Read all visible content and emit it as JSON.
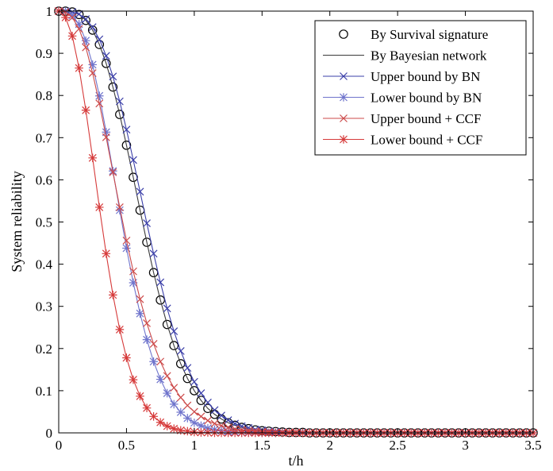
{
  "chart_data": {
    "type": "line",
    "title": "",
    "xlabel": "t/h",
    "ylabel": "System reliability",
    "xlim": [
      0,
      3.5
    ],
    "ylim": [
      0,
      1
    ],
    "xticks": [
      0,
      0.5,
      1,
      1.5,
      2,
      2.5,
      3,
      3.5
    ],
    "xtick_labels": [
      "0",
      "0.5",
      "1",
      "1.5",
      "2",
      "2.5",
      "3",
      "3.5"
    ],
    "yticks": [
      0,
      0.1,
      0.2,
      0.3,
      0.4,
      0.5,
      0.6,
      0.7,
      0.8,
      0.9,
      1
    ],
    "ytick_labels": [
      "0",
      "0.1",
      "0.2",
      "0.3",
      "0.4",
      "0.5",
      "0.6",
      "0.7",
      "0.8",
      "0.9",
      "1"
    ],
    "grid": false,
    "legend_position": "top-right",
    "x": [
      0,
      0.05,
      0.1,
      0.15,
      0.2,
      0.25,
      0.3,
      0.35,
      0.4,
      0.45,
      0.5,
      0.55,
      0.6,
      0.65,
      0.7,
      0.75,
      0.8,
      0.85,
      0.9,
      0.95,
      1.0,
      1.05,
      1.1,
      1.15,
      1.2,
      1.25,
      1.3,
      1.35,
      1.4,
      1.45,
      1.5,
      1.55,
      1.6,
      1.65,
      1.7,
      1.75,
      1.8,
      1.85,
      1.9,
      1.95,
      2.0,
      2.05,
      2.1,
      2.15,
      2.2,
      2.25,
      2.3,
      2.35,
      2.4,
      2.45,
      2.5,
      2.55,
      2.6,
      2.65,
      2.7,
      2.75,
      2.8,
      2.85,
      2.9,
      2.95,
      3.0,
      3.05,
      3.1,
      3.15,
      3.2,
      3.25,
      3.3,
      3.35,
      3.4,
      3.45,
      3.5
    ],
    "series": [
      {
        "name": "By Survival signature",
        "color": "#000000",
        "line": false,
        "marker": "circle",
        "values": [
          1.0,
          1.0,
          0.998,
          0.992,
          0.978,
          0.955,
          0.921,
          0.876,
          0.82,
          0.755,
          0.682,
          0.606,
          0.528,
          0.452,
          0.38,
          0.315,
          0.257,
          0.207,
          0.164,
          0.129,
          0.1,
          0.077,
          0.058,
          0.044,
          0.033,
          0.024,
          0.018,
          0.013,
          0.01,
          0.007,
          0.005,
          0.004,
          0.003,
          0.002,
          0.001,
          0.001,
          0.001,
          0.0,
          0.0,
          0.0,
          0.0,
          0.0,
          0.0,
          0.0,
          0.0,
          0.0,
          0.0,
          0.0,
          0.0,
          0.0,
          0.0,
          0.0,
          0.0,
          0.0,
          0.0,
          0.0,
          0.0,
          0.0,
          0.0,
          0.0,
          0.0,
          0.0,
          0.0,
          0.0,
          0.0,
          0.0,
          0.0,
          0.0,
          0.0,
          0.0,
          0.0
        ]
      },
      {
        "name": "By Bayesian network",
        "color": "#3a3a3a",
        "line": true,
        "marker": "none",
        "values": [
          1.0,
          1.0,
          0.998,
          0.992,
          0.978,
          0.955,
          0.921,
          0.876,
          0.82,
          0.755,
          0.682,
          0.606,
          0.528,
          0.452,
          0.38,
          0.315,
          0.257,
          0.207,
          0.164,
          0.129,
          0.1,
          0.077,
          0.058,
          0.044,
          0.033,
          0.024,
          0.018,
          0.013,
          0.01,
          0.007,
          0.005,
          0.004,
          0.003,
          0.002,
          0.001,
          0.001,
          0.001,
          0.0,
          0.0,
          0.0,
          0.0,
          0.0,
          0.0,
          0.0,
          0.0,
          0.0,
          0.0,
          0.0,
          0.0,
          0.0,
          0.0,
          0.0,
          0.0,
          0.0,
          0.0,
          0.0,
          0.0,
          0.0,
          0.0,
          0.0,
          0.0,
          0.0,
          0.0,
          0.0,
          0.0,
          0.0,
          0.0,
          0.0,
          0.0,
          0.0,
          0.0
        ]
      },
      {
        "name": "Upper bound by BN",
        "color": "#3b3fa8",
        "line": true,
        "marker": "x",
        "values": [
          1.0,
          1.0,
          0.998,
          0.993,
          0.981,
          0.962,
          0.933,
          0.894,
          0.845,
          0.786,
          0.719,
          0.647,
          0.572,
          0.497,
          0.425,
          0.357,
          0.295,
          0.241,
          0.194,
          0.154,
          0.121,
          0.094,
          0.072,
          0.054,
          0.041,
          0.03,
          0.022,
          0.016,
          0.012,
          0.008,
          0.006,
          0.004,
          0.003,
          0.002,
          0.001,
          0.001,
          0.001,
          0.0,
          0.0,
          0.0,
          0.0,
          0.0,
          0.0,
          0.0,
          0.0,
          0.0,
          0.0,
          0.0,
          0.0,
          0.0,
          0.0,
          0.0,
          0.0,
          0.0,
          0.0,
          0.0,
          0.0,
          0.0,
          0.0,
          0.0,
          0.0,
          0.0,
          0.0,
          0.0,
          0.0,
          0.0,
          0.0,
          0.0,
          0.0,
          0.0,
          0.0
        ]
      },
      {
        "name": "Lower bound by BN",
        "color": "#6f74cc",
        "line": true,
        "marker": "asterisk",
        "values": [
          1.0,
          0.999,
          0.99,
          0.969,
          0.93,
          0.873,
          0.799,
          0.713,
          0.621,
          0.528,
          0.438,
          0.356,
          0.283,
          0.221,
          0.169,
          0.127,
          0.094,
          0.068,
          0.049,
          0.035,
          0.024,
          0.017,
          0.011,
          0.008,
          0.005,
          0.003,
          0.002,
          0.001,
          0.001,
          0.001,
          0.0,
          0.0,
          0.0,
          0.0,
          0.0,
          0.0,
          0.0,
          0.0,
          0.0,
          0.0,
          0.0,
          0.0,
          0.0,
          0.0,
          0.0,
          0.0,
          0.0,
          0.0,
          0.0,
          0.0,
          0.0,
          0.0,
          0.0,
          0.0,
          0.0,
          0.0,
          0.0,
          0.0,
          0.0,
          0.0,
          0.0,
          0.0,
          0.0,
          0.0,
          0.0,
          0.0,
          0.0,
          0.0,
          0.0,
          0.0,
          0.0
        ]
      },
      {
        "name": "Upper bound + CCF",
        "color": "#cc4a4a",
        "line": true,
        "marker": "x",
        "values": [
          1.0,
          0.998,
          0.985,
          0.958,
          0.914,
          0.853,
          0.781,
          0.701,
          0.618,
          0.535,
          0.456,
          0.383,
          0.317,
          0.26,
          0.211,
          0.169,
          0.135,
          0.107,
          0.084,
          0.065,
          0.05,
          0.039,
          0.029,
          0.022,
          0.017,
          0.013,
          0.009,
          0.007,
          0.005,
          0.004,
          0.003,
          0.002,
          0.001,
          0.001,
          0.001,
          0.001,
          0.0,
          0.0,
          0.0,
          0.0,
          0.0,
          0.0,
          0.0,
          0.0,
          0.0,
          0.0,
          0.0,
          0.0,
          0.0,
          0.0,
          0.0,
          0.0,
          0.0,
          0.0,
          0.0,
          0.0,
          0.0,
          0.0,
          0.0,
          0.0,
          0.0,
          0.0,
          0.0,
          0.0,
          0.0,
          0.0,
          0.0,
          0.0,
          0.0,
          0.0,
          0.0
        ]
      },
      {
        "name": "Lower bound + CCF",
        "color": "#d63a3a",
        "line": true,
        "marker": "asterisk",
        "values": [
          1.0,
          0.985,
          0.941,
          0.865,
          0.765,
          0.652,
          0.535,
          0.425,
          0.327,
          0.245,
          0.178,
          0.126,
          0.087,
          0.059,
          0.039,
          0.025,
          0.016,
          0.01,
          0.006,
          0.004,
          0.002,
          0.001,
          0.001,
          0.0,
          0.0,
          0.0,
          0.0,
          0.0,
          0.0,
          0.0,
          0.0,
          0.0,
          0.0,
          0.0,
          0.0,
          0.0,
          0.0,
          0.0,
          0.0,
          0.0,
          0.0,
          0.0,
          0.0,
          0.0,
          0.0,
          0.0,
          0.0,
          0.0,
          0.0,
          0.0,
          0.0,
          0.0,
          0.0,
          0.0,
          0.0,
          0.0,
          0.0,
          0.0,
          0.0,
          0.0,
          0.0,
          0.0,
          0.0,
          0.0,
          0.0,
          0.0,
          0.0,
          0.0,
          0.0,
          0.0,
          0.0
        ]
      }
    ]
  }
}
